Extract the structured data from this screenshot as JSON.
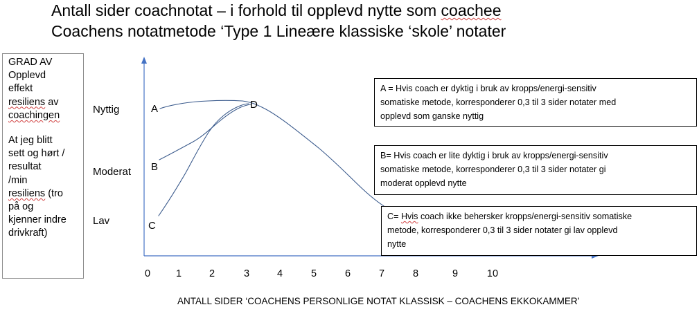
{
  "title": {
    "line1_pre": "Antall sider coachnotat – i forhold til opplevd nytte som ",
    "line1_sq": "coachee",
    "line2": "Coachens notatmetode ‘Type 1 Lineære klassiske ‘skole’ notater"
  },
  "y_axis_box": {
    "grad": "GRAD AV",
    "opplevd": "Opplevd",
    "effekt": "effekt",
    "resiliens_av_word": "resiliens",
    "resiliens_av_rest": " av",
    "coachingen": "coachingen",
    "jeg_blitt": "At jeg blitt",
    "sett": "sett og hørt /",
    "resultat": "resultat",
    "min": "/min",
    "resiliens_tro_word": "resiliens",
    "resiliens_tro_rest": " (tro",
    "paa_og": "på og",
    "kjenner": "kjenner indre",
    "drivkraft": "drivkraft)"
  },
  "y_levels": {
    "nyttig": "Nyttig",
    "moderat": "Moderat",
    "lav": "Lav"
  },
  "x_axis_title": "ANTALL SIDER ‘COACHENS PERSONLIGE NOTAT KLASSISK – COACHENS EKKOKAMMER’",
  "x_ticks": [
    "0",
    "1",
    "2",
    "3",
    "4",
    "5",
    "6",
    "7",
    "8",
    "9",
    "10"
  ],
  "point_labels": {
    "a": "A",
    "b": "B",
    "c": "C",
    "d": "D"
  },
  "notes": {
    "a": {
      "line1": "A = Hvis coach er dyktig i bruk av kropps/energi-sensitiv",
      "line2": "somatiske metode, korresponderer  0,3 til 3 sider notater med",
      "line3": "opplevd som ganske nyttig"
    },
    "b": {
      "line1": "B= Hvis coach er lite dyktig i bruk av kropps/energi-sensitiv",
      "line2": "somatiske metode, korresponderer  0,3 til 3 sider notater gi",
      "line3": "moderat opplevd nytte"
    },
    "c": {
      "line1_pre": "C= ",
      "line1_sq": "Hvis",
      "line1_post": " coach ikke behersker kropps/energi-sensitiv somatiske",
      "line2": "metode, korresponderer  0,3 til 3 sider notater gi lav opplevd",
      "line3": "nytte"
    }
  },
  "colors": {
    "axis": "#4472c4",
    "curve": "#3a5a8c",
    "text": "#000000",
    "box_border": "#000000"
  }
}
